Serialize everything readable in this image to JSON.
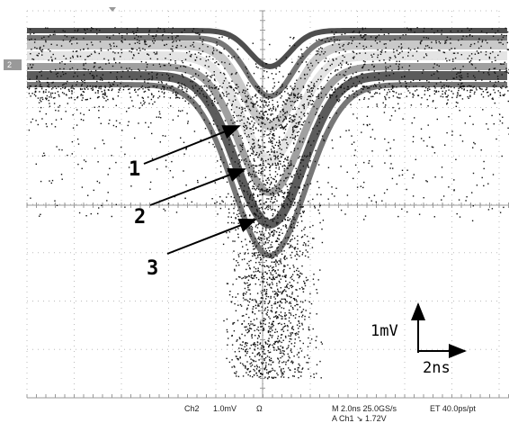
{
  "screen": {
    "channel_marker": "2",
    "annotations": [
      "1",
      "2",
      "3"
    ],
    "scale": {
      "voltage": "1mV",
      "time": "2ns"
    }
  },
  "status": {
    "channel": "Ch2",
    "volts_per_div": "1.0mV",
    "coupling": "Ω",
    "timebase": "M 2.0ns 25.0GS/s",
    "equivalent_time": "ET 40.0ps/pt",
    "trigger": "A Ch1 ↘ 1.72V"
  }
}
